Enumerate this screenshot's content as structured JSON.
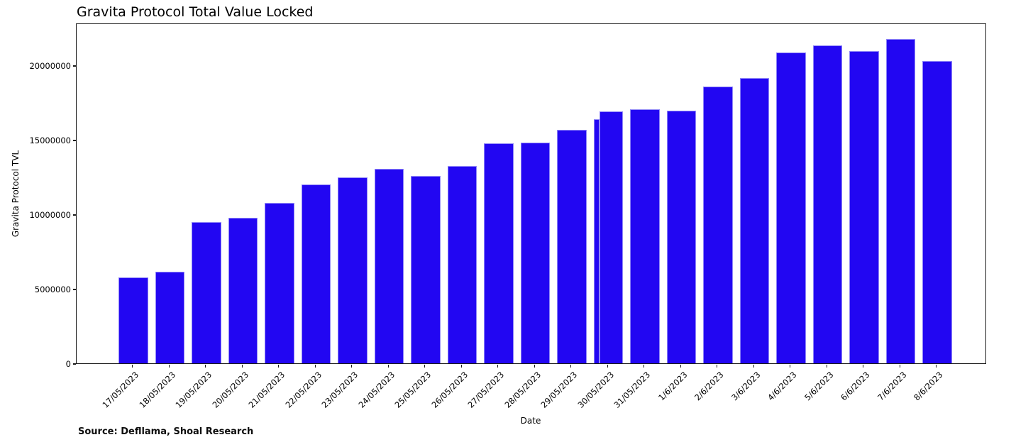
{
  "header": {
    "title": "Gravita Protocol Total Value Locked"
  },
  "watermark": {
    "text": "Shoal Research",
    "color": "#a6a6a6"
  },
  "footer": {
    "source_text": "Source: Defllama, Shoal Research"
  },
  "chart_data": {
    "type": "bar",
    "title": "Gravita Protocol Total Value Locked",
    "xlabel": "Date",
    "ylabel": "Gravita Protocol TVL",
    "categories": [
      "17/05/2023",
      "18/05/2023",
      "19/05/2023",
      "20/05/2023",
      "21/05/2023",
      "22/05/2023",
      "23/05/2023",
      "24/05/2023",
      "25/05/2023",
      "26/05/2023",
      "27/05/2023",
      "28/05/2023",
      "29/05/2023",
      "30/05/2023",
      "31/05/2023",
      "1/6/2023",
      "2/6/2023",
      "3/6/2023",
      "4/6/2023",
      "5/6/2023",
      "6/6/2023",
      "7/6/2023",
      "8/6/2023"
    ],
    "values": [
      5750000,
      6140000,
      9480000,
      9780000,
      10750000,
      12000000,
      12480000,
      13060000,
      12590000,
      13220000,
      14780000,
      14820000,
      15670000,
      16890000,
      17050000,
      16950000,
      18590000,
      19150000,
      20860000,
      21350000,
      20940000,
      21760000,
      20300000
    ],
    "overlap_shoulder": {
      "category": "30/05/2023",
      "value": 16370000
    },
    "yticks": [
      0,
      5000000,
      10000000,
      15000000,
      20000000
    ],
    "ylim": [
      0,
      22860000
    ],
    "grid": false,
    "legend": null,
    "x_tick_rotation": 45,
    "bar_color": "#2206f2",
    "bar_edge_color": "#8f86f7",
    "axis_color": "#1a1a1a"
  }
}
